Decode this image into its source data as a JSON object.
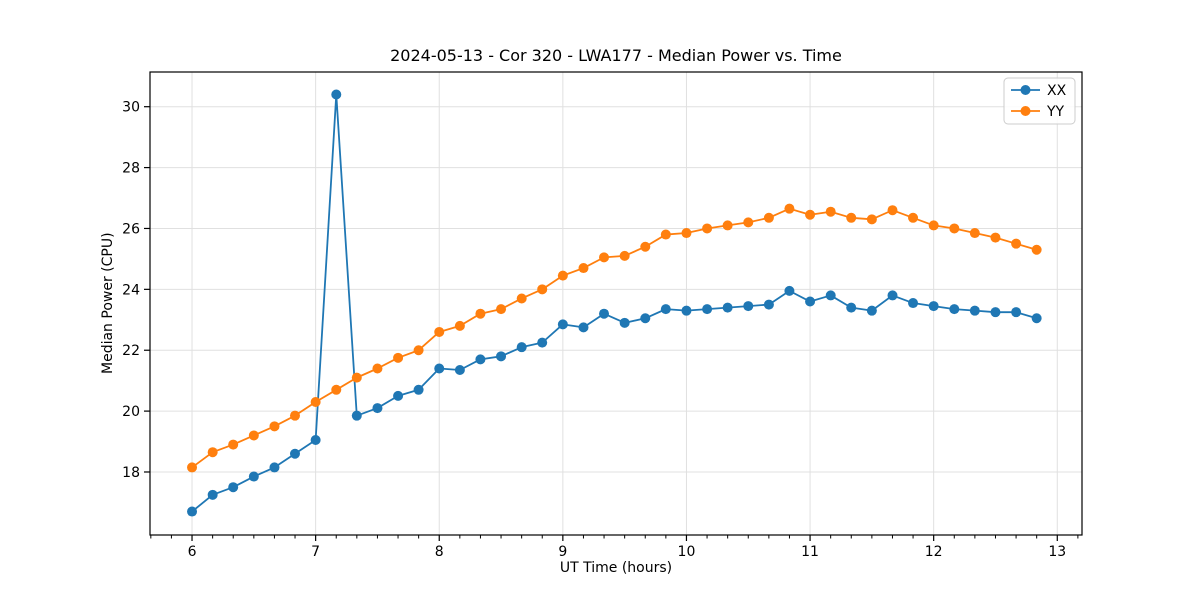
{
  "chart_data": {
    "type": "line",
    "title": "2024-05-13 - Cor 320 - LWA177 - Median Power vs. Time",
    "xlabel": "UT Time (hours)",
    "ylabel": "Median Power (CPU)",
    "xlim": [
      5.66,
      13.2
    ],
    "ylim": [
      15.93,
      31.14
    ],
    "x_major_ticks": [
      6,
      7,
      8,
      9,
      10,
      11,
      12,
      13
    ],
    "x_minor_ticks_per_hour": 6,
    "y_major_ticks": [
      18,
      20,
      22,
      24,
      26,
      28,
      30
    ],
    "grid": true,
    "grid_color": "#e0e0e0",
    "legend_position": "upper right",
    "x": [
      6,
      6.167,
      6.333,
      6.5,
      6.667,
      6.833,
      7,
      7.167,
      7.333,
      7.5,
      7.667,
      7.833,
      8,
      8.167,
      8.333,
      8.5,
      8.667,
      8.833,
      9,
      9.167,
      9.333,
      9.5,
      9.667,
      9.833,
      10,
      10.167,
      10.333,
      10.5,
      10.667,
      10.833,
      11,
      11.167,
      11.333,
      11.5,
      11.667,
      11.833,
      12,
      12.167,
      12.333,
      12.5,
      12.667,
      12.833
    ],
    "series": [
      {
        "name": "XX",
        "color": "#1f77b4",
        "values": [
          16.7,
          17.25,
          17.5,
          17.85,
          18.15,
          18.6,
          19.05,
          30.4,
          19.85,
          20.1,
          20.5,
          20.7,
          21.4,
          21.35,
          21.7,
          21.8,
          22.1,
          22.25,
          22.85,
          22.75,
          23.2,
          22.9,
          23.05,
          23.35,
          23.3,
          23.35,
          23.4,
          23.45,
          23.5,
          23.95,
          23.6,
          23.8,
          23.4,
          23.3,
          23.8,
          23.55,
          23.45,
          23.35,
          23.3,
          23.25,
          23.25,
          23.05
        ]
      },
      {
        "name": "YY",
        "color": "#ff7f0e",
        "values": [
          18.15,
          18.65,
          18.9,
          19.2,
          19.5,
          19.85,
          20.3,
          20.7,
          21.1,
          21.4,
          21.75,
          22.0,
          22.6,
          22.8,
          23.2,
          23.35,
          23.7,
          24.0,
          24.45,
          24.7,
          25.05,
          25.1,
          25.4,
          25.8,
          25.85,
          26.0,
          26.1,
          26.2,
          26.35,
          26.65,
          26.45,
          26.55,
          26.35,
          26.3,
          26.6,
          26.35,
          26.1,
          26.0,
          25.85,
          25.7,
          25.5,
          25.3
        ]
      }
    ]
  }
}
